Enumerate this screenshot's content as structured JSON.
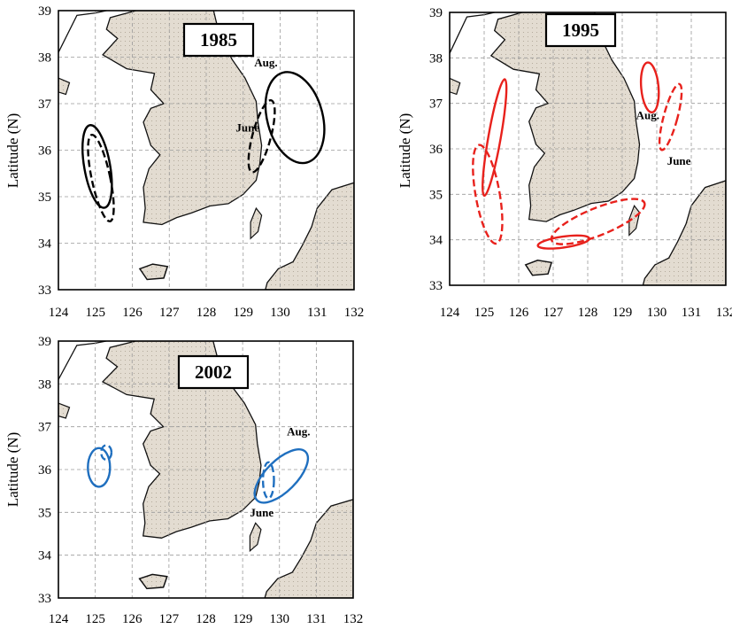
{
  "axes": {
    "x_ticks": [
      "124",
      "125",
      "126",
      "127",
      "128",
      "129",
      "130",
      "131",
      "132"
    ],
    "y_ticks": [
      "39",
      "38",
      "37",
      "36",
      "35",
      "34",
      "33"
    ],
    "y_label": "Latitude (N)",
    "lon_range": [
      124,
      132
    ],
    "lat_range": [
      33,
      39
    ]
  },
  "colors": {
    "1985": "#000000",
    "1995": "#e8211c",
    "2002": "#1f6fbf",
    "land": "#e3dcd1"
  },
  "panels": [
    {
      "id": "1985",
      "title": "1985",
      "color": "#000000",
      "labels": [
        {
          "text": "Aug.",
          "lon": 129.3,
          "lat": 37.8
        },
        {
          "text": "June",
          "lon": 128.8,
          "lat": 36.4
        }
      ],
      "regions": [
        {
          "month": "Aug.",
          "style": "solid",
          "lon": 125.05,
          "lat": 35.65,
          "rx": 0.35,
          "ry": 0.9,
          "rot": -10
        },
        {
          "month": "June",
          "style": "dashed",
          "lon": 125.15,
          "lat": 35.4,
          "rx": 0.25,
          "ry": 0.95,
          "rot": -12
        },
        {
          "month": "Aug.",
          "style": "solid",
          "lon": 130.4,
          "lat": 36.7,
          "rx": 0.75,
          "ry": 1.0,
          "rot": -15
        },
        {
          "month": "June",
          "style": "dashed",
          "lon": 129.5,
          "lat": 36.3,
          "rx": 0.25,
          "ry": 0.8,
          "rot": 15
        }
      ]
    },
    {
      "id": "1995",
      "title": "1995",
      "color": "#e8211c",
      "labels": [
        {
          "text": "Aug.",
          "lon": 129.4,
          "lat": 36.65
        },
        {
          "text": "June",
          "lon": 130.3,
          "lat": 35.65
        }
      ],
      "regions": [
        {
          "month": "Aug.",
          "style": "solid",
          "lon": 125.3,
          "lat": 36.25,
          "rx": 0.18,
          "ry": 1.3,
          "rot": 10
        },
        {
          "month": "June",
          "style": "dashed",
          "lon": 125.1,
          "lat": 35.0,
          "rx": 0.35,
          "ry": 1.1,
          "rot": -10
        },
        {
          "month": "Aug.",
          "style": "solid",
          "lon": 129.8,
          "lat": 37.35,
          "rx": 0.25,
          "ry": 0.55,
          "rot": -5
        },
        {
          "month": "June",
          "style": "dashed",
          "lon": 130.4,
          "lat": 36.7,
          "rx": 0.2,
          "ry": 0.75,
          "rot": 15
        },
        {
          "month": "Aug.",
          "style": "solid",
          "lon": 127.3,
          "lat": 33.95,
          "rx": 0.75,
          "ry": 0.12,
          "rot": -8
        },
        {
          "month": "June",
          "style": "dashed",
          "lon": 128.3,
          "lat": 34.4,
          "rx": 1.45,
          "ry": 0.3,
          "rot": -22
        }
      ]
    },
    {
      "id": "2002",
      "title": "2002",
      "color": "#1f6fbf",
      "labels": [
        {
          "text": "Aug.",
          "lon": 130.2,
          "lat": 36.8
        },
        {
          "text": "June",
          "lon": 129.2,
          "lat": 34.9
        }
      ],
      "regions": [
        {
          "month": "Aug.",
          "style": "solid",
          "lon": 125.1,
          "lat": 36.05,
          "rx": 0.3,
          "ry": 0.45,
          "rot": 0
        },
        {
          "month": "June",
          "style": "dashed",
          "lon": 125.3,
          "lat": 36.4,
          "rx": 0.14,
          "ry": 0.17,
          "rot": 0
        },
        {
          "month": "Aug.",
          "style": "solid",
          "lon": 130.05,
          "lat": 35.85,
          "rx": 0.42,
          "ry": 0.8,
          "rot": 45
        },
        {
          "month": "June",
          "style": "dashed",
          "lon": 129.7,
          "lat": 35.75,
          "rx": 0.15,
          "ry": 0.42,
          "rot": 0
        }
      ]
    }
  ]
}
